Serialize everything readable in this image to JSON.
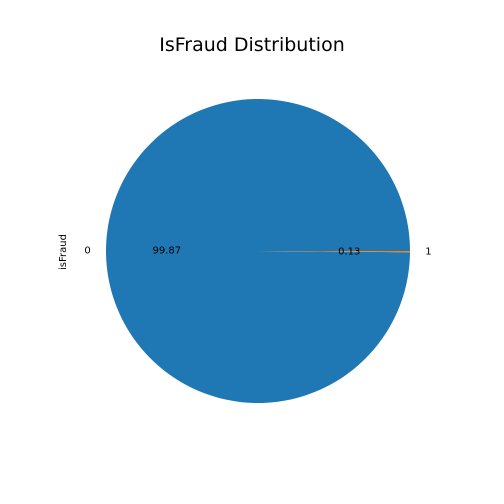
{
  "chart_data": {
    "type": "pie",
    "title": "IsFraud Distribution",
    "ylabel": "isFraud",
    "slices": [
      {
        "category": "0",
        "value": 99.87,
        "pct_label": "99.87",
        "color": "#1f77b4"
      },
      {
        "category": "1",
        "value": 0.13,
        "pct_label": "0.13",
        "color": "#ff7f0e"
      }
    ]
  }
}
